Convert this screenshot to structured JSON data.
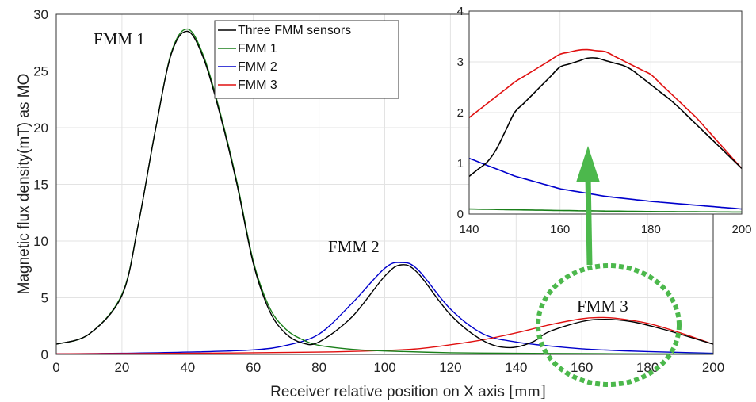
{
  "chart_data": {
    "type": "line",
    "xlabel_main": "Receiver  relative position on X axis ",
    "xlabel_unit": "[mm]",
    "ylabel": "Magnetic flux density(mT) as MO",
    "xlim": [
      0,
      200
    ],
    "ylim": [
      0,
      30
    ],
    "xticks": [
      "0",
      "20",
      "40",
      "60",
      "80",
      "100",
      "120",
      "140",
      "160",
      "180",
      "200"
    ],
    "yticks": [
      "0",
      "5",
      "10",
      "15",
      "20",
      "25",
      "30"
    ],
    "grid": true,
    "legend_placement": "top-center",
    "series": [
      {
        "name": "Three FMM sensors",
        "color": "#000000",
        "x": [
          0,
          10,
          20,
          25,
          30,
          35,
          40,
          45,
          50,
          55,
          60,
          65,
          70,
          75,
          80,
          90,
          100,
          105,
          110,
          120,
          130,
          138,
          145,
          150,
          160,
          167,
          175,
          185,
          200
        ],
        "y": [
          0.9,
          1.8,
          5.2,
          11.5,
          19.5,
          26.5,
          28.5,
          26,
          21,
          15,
          8,
          3.8,
          1.8,
          1.0,
          1.1,
          3.3,
          6.9,
          7.9,
          7.2,
          3.5,
          1.2,
          0.6,
          1.1,
          2.0,
          2.9,
          3.1,
          2.9,
          2.2,
          0.9
        ]
      },
      {
        "name": "FMM 1",
        "color": "#1a7f1a",
        "x": [
          0,
          10,
          20,
          25,
          30,
          35,
          40,
          45,
          50,
          55,
          60,
          65,
          70,
          75,
          80,
          90,
          100,
          120,
          140,
          160,
          180,
          200
        ],
        "y": [
          0.9,
          1.8,
          5.3,
          11.5,
          19.5,
          26.6,
          28.7,
          26.2,
          21.2,
          15.2,
          8.2,
          4.1,
          2.2,
          1.3,
          0.8,
          0.45,
          0.3,
          0.15,
          0.1,
          0.07,
          0.05,
          0.04
        ]
      },
      {
        "name": "FMM 2",
        "color": "#0000cc",
        "x": [
          0,
          20,
          40,
          60,
          70,
          80,
          90,
          100,
          105,
          110,
          120,
          130,
          140,
          150,
          160,
          170,
          180,
          200
        ],
        "y": [
          0.05,
          0.1,
          0.2,
          0.4,
          0.8,
          1.8,
          4.5,
          7.6,
          8.1,
          7.5,
          4.0,
          1.8,
          1.1,
          0.75,
          0.5,
          0.35,
          0.25,
          0.1
        ]
      },
      {
        "name": "FMM 3",
        "color": "#e01010",
        "x": [
          0,
          40,
          80,
          100,
          110,
          120,
          130,
          140,
          150,
          160,
          165,
          170,
          180,
          190,
          200
        ],
        "y": [
          0.05,
          0.1,
          0.2,
          0.35,
          0.5,
          0.85,
          1.3,
          1.9,
          2.6,
          3.15,
          3.25,
          3.2,
          2.75,
          1.9,
          0.9
        ]
      }
    ],
    "annotations": [
      "FMM 1",
      "FMM 2",
      "FMM 3"
    ],
    "inset": {
      "xlim": [
        140,
        200
      ],
      "ylim": [
        0,
        4
      ],
      "xticks": [
        "140",
        "160",
        "180",
        "200"
      ],
      "yticks": [
        "0",
        "1",
        "2",
        "3",
        "4"
      ]
    }
  }
}
